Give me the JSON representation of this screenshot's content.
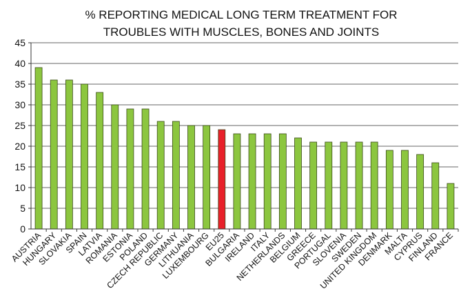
{
  "chart_data": {
    "type": "bar",
    "title": [
      "% REPORTING MEDICAL LONG TERM TREATMENT FOR",
      "TROUBLES WITH MUSCLES, BONES AND JOINTS"
    ],
    "categories": [
      "AUSTRIA",
      "HUNGARY",
      "SLOVAKIA",
      "SPAIN",
      "LATVIA",
      "ROMANIA",
      "ESTONIA",
      "POLAND",
      "CZECH REPUBLIC",
      "GERMANY",
      "LITHUANIA",
      "LUXEMBOURG",
      "EU25",
      "BULGARIA",
      "IRELAND",
      "ITALY",
      "NETHERLANDS",
      "BELGIUM",
      "GREECE",
      "PORTUGAL",
      "SLOVENIA",
      "SWEDEN",
      "UNITED KINGDOM",
      "DENMARK",
      "MALTA",
      "CYPRUS",
      "FINLAND",
      "FRANCE"
    ],
    "values": [
      39,
      36,
      36,
      35,
      33,
      30,
      29,
      29,
      26,
      26,
      25,
      25,
      24,
      23,
      23,
      23,
      23,
      22,
      21,
      21,
      21,
      21,
      21,
      19,
      19,
      18,
      16,
      11
    ],
    "colors": [
      "#8cc63f",
      "#8cc63f",
      "#8cc63f",
      "#8cc63f",
      "#8cc63f",
      "#8cc63f",
      "#8cc63f",
      "#8cc63f",
      "#8cc63f",
      "#8cc63f",
      "#8cc63f",
      "#8cc63f",
      "#e8202a",
      "#8cc63f",
      "#8cc63f",
      "#8cc63f",
      "#8cc63f",
      "#8cc63f",
      "#8cc63f",
      "#8cc63f",
      "#8cc63f",
      "#8cc63f",
      "#8cc63f",
      "#8cc63f",
      "#8cc63f",
      "#8cc63f",
      "#8cc63f",
      "#8cc63f"
    ],
    "ylim": [
      0,
      45
    ],
    "yticks": [
      0,
      5,
      10,
      15,
      20,
      25,
      30,
      35,
      40,
      45
    ],
    "grid": true
  }
}
